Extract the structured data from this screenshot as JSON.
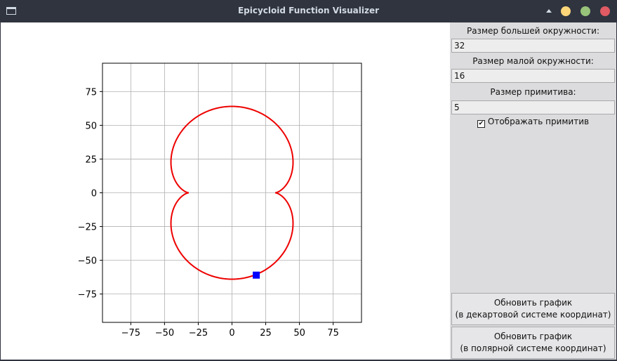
{
  "window": {
    "title": "Epicycloid Function Visualizer"
  },
  "panel": {
    "big_circle_label": "Размер большей окружности:",
    "big_circle_value": "32",
    "small_circle_label": "Размер малой окружности:",
    "small_circle_value": "16",
    "primitive_label": "Размер примитива:",
    "primitive_value": "5",
    "show_primitive_label": "Отображать примитив",
    "show_primitive_checked": true,
    "update_cartesian_line1": "Обновить график",
    "update_cartesian_line2": "(в декартовой системе координат)",
    "update_polar_line1": "Обновить график",
    "update_polar_line2": "(в полярной системе координат)"
  },
  "chart_data": {
    "type": "line",
    "title": "",
    "xlabel": "",
    "ylabel": "",
    "xlim": [
      -96,
      96
    ],
    "ylim": [
      -96,
      96
    ],
    "grid": true,
    "x_ticks": [
      -75,
      -50,
      -25,
      0,
      25,
      50,
      75
    ],
    "y_ticks": [
      75,
      50,
      25,
      0,
      -25,
      -50,
      -75
    ],
    "x_tick_labels": [
      "−75",
      "−50",
      "−25",
      "0",
      "25",
      "50",
      "75"
    ],
    "y_tick_labels": [
      "75",
      "50",
      "25",
      "0",
      "−25",
      "−50",
      "−75"
    ],
    "curve": {
      "kind": "epicycloid",
      "R": 32,
      "r": 16,
      "color": "#ee0000"
    },
    "primitive_marker": {
      "x": 18,
      "y": -61,
      "color": "#0000ff",
      "size": 5
    }
  }
}
